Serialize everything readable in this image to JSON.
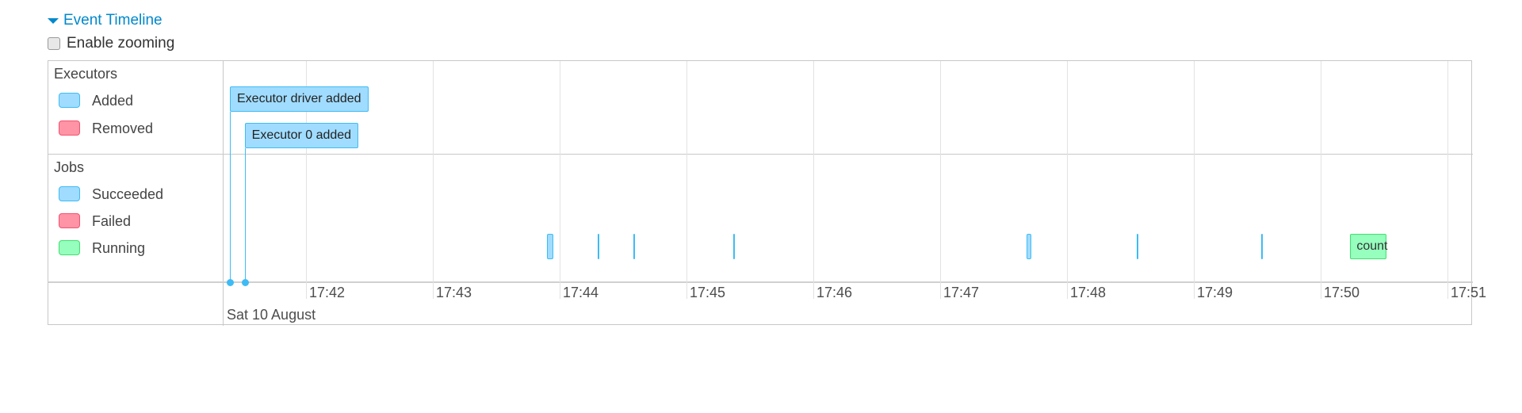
{
  "header": {
    "title": "Event Timeline",
    "toggle_icon": "caret-down-icon",
    "zoom_label": "Enable zooming",
    "zoom_checked": false
  },
  "legend": {
    "executors": {
      "title": "Executors",
      "items": [
        {
          "label": "Added",
          "color": "#a0dcff"
        },
        {
          "label": "Removed",
          "color": "#ff94a6"
        }
      ]
    },
    "jobs": {
      "title": "Jobs",
      "items": [
        {
          "label": "Succeeded",
          "color": "#a0dcff"
        },
        {
          "label": "Failed",
          "color": "#ff94a6"
        },
        {
          "label": "Running",
          "color": "#96ffbe"
        }
      ]
    }
  },
  "axis": {
    "date_label": "Sat 10 August",
    "window_start": "17:41:21",
    "window_end": "17:51:12",
    "ticks": [
      "17:42",
      "17:43",
      "17:44",
      "17:45",
      "17:46",
      "17:47",
      "17:48",
      "17:49",
      "17:50",
      "17:51"
    ]
  },
  "executor_events": [
    {
      "label": "Executor driver added",
      "time": "17:41:24",
      "type": "added"
    },
    {
      "label": "Executor 0 added",
      "time": "17:41:31",
      "type": "added"
    }
  ],
  "jobs": [
    {
      "start": "17:43:54",
      "end": "17:43:57",
      "status": "succeeded"
    },
    {
      "start": "17:44:18",
      "end": "17:44:18",
      "status": "succeeded"
    },
    {
      "start": "17:44:35",
      "end": "17:44:35",
      "status": "succeeded"
    },
    {
      "start": "17:45:22",
      "end": "17:45:22",
      "status": "succeeded"
    },
    {
      "start": "17:47:41",
      "end": "17:47:43",
      "status": "succeeded"
    },
    {
      "start": "17:48:33",
      "end": "17:48:33",
      "status": "succeeded"
    },
    {
      "start": "17:49:32",
      "end": "17:49:32",
      "status": "succeeded"
    },
    {
      "start": "17:50:14",
      "end": "17:50:31",
      "status": "running",
      "label": "count"
    }
  ]
}
